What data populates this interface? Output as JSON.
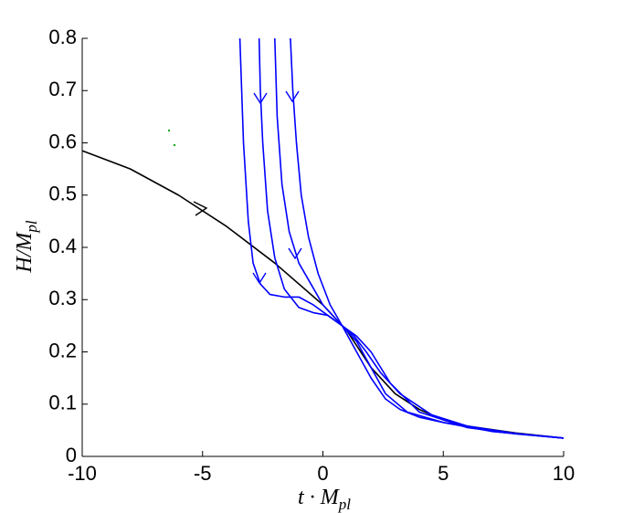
{
  "chart_data": {
    "type": "line",
    "x_label": {
      "main": "t · M",
      "sub": "pl"
    },
    "y_label": {
      "main": "H/M",
      "sub": "pl"
    },
    "xlim": [
      -10,
      10
    ],
    "xticks": [
      -10,
      -5,
      0,
      5,
      10
    ],
    "ylim": [
      0,
      0.8
    ],
    "yticks": [
      0,
      0.1,
      0.2,
      0.3,
      0.4,
      0.5,
      0.6,
      0.7,
      0.8
    ],
    "grid": false,
    "series": [
      {
        "color": "#000000",
        "x": [
          -10,
          -8,
          -6,
          -4,
          -2,
          0,
          1,
          2,
          3,
          4,
          5,
          6,
          8,
          10
        ],
        "values": [
          0.585,
          0.55,
          0.5,
          0.44,
          0.37,
          0.29,
          0.24,
          0.17,
          0.12,
          0.09,
          0.07,
          0.058,
          0.045,
          0.035
        ]
      },
      {
        "color": "#0000ff",
        "x": [
          -3.45,
          -3.3,
          -3.1,
          -2.9,
          -2.6,
          -2.2,
          -1.6,
          -1.0,
          -0.4,
          0.2,
          0.8,
          1.4,
          2,
          2.6,
          3.5,
          5,
          7,
          10
        ],
        "values": [
          0.8,
          0.6,
          0.45,
          0.37,
          0.33,
          0.31,
          0.305,
          0.305,
          0.29,
          0.27,
          0.25,
          0.22,
          0.17,
          0.12,
          0.085,
          0.065,
          0.048,
          0.035
        ]
      },
      {
        "color": "#0000ff",
        "x": [
          -2.65,
          -2.6,
          -2.5,
          -2.3,
          -2.0,
          -1.6,
          -1.0,
          -0.4,
          0.2,
          0.8,
          1.4,
          2,
          2.6,
          3.2,
          4,
          5,
          7,
          10
        ],
        "values": [
          0.8,
          0.7,
          0.6,
          0.47,
          0.38,
          0.32,
          0.285,
          0.275,
          0.27,
          0.25,
          0.2,
          0.15,
          0.11,
          0.09,
          0.075,
          0.065,
          0.048,
          0.035
        ]
      },
      {
        "color": "#0000ff",
        "x": [
          -2.0,
          -1.9,
          -1.7,
          -1.4,
          -1.0,
          -0.5,
          0,
          0.4,
          0.8,
          1.4,
          2,
          2.8,
          4,
          6,
          8,
          10
        ],
        "values": [
          0.8,
          0.65,
          0.52,
          0.43,
          0.37,
          0.33,
          0.29,
          0.27,
          0.25,
          0.23,
          0.2,
          0.14,
          0.085,
          0.055,
          0.043,
          0.035
        ]
      },
      {
        "color": "#0000ff",
        "x": [
          -1.35,
          -1.25,
          -1.1,
          -0.9,
          -0.6,
          -0.2,
          0.3,
          0.8,
          1.3,
          1.8,
          2.4,
          3.2,
          4.5,
          6,
          8,
          10
        ],
        "values": [
          0.8,
          0.7,
          0.6,
          0.5,
          0.42,
          0.35,
          0.29,
          0.25,
          0.23,
          0.2,
          0.16,
          0.12,
          0.08,
          0.058,
          0.044,
          0.035
        ]
      }
    ]
  }
}
